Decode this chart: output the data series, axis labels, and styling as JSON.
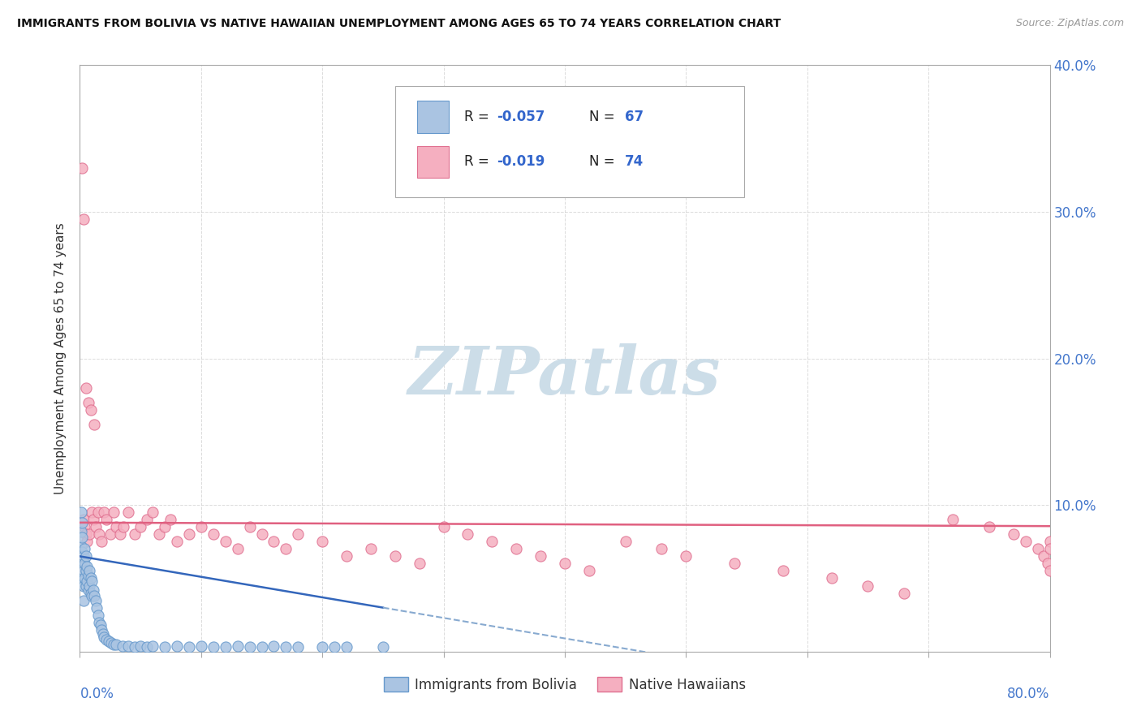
{
  "title": "IMMIGRANTS FROM BOLIVIA VS NATIVE HAWAIIAN UNEMPLOYMENT AMONG AGES 65 TO 74 YEARS CORRELATION CHART",
  "source": "Source: ZipAtlas.com",
  "ylabel": "Unemployment Among Ages 65 to 74 years",
  "xlim": [
    0.0,
    0.8
  ],
  "ylim": [
    0.0,
    0.4
  ],
  "legend_bottom_label1": "Immigrants from Bolivia",
  "legend_bottom_label2": "Native Hawaiians",
  "bolivia_color": "#aac4e2",
  "hawaii_color": "#f5afc0",
  "bolivia_edge": "#6699cc",
  "hawaii_edge": "#e07090",
  "trendline_bolivia_solid_color": "#3366bb",
  "trendline_bolivia_dash_color": "#88aad0",
  "trendline_hawaii_color": "#e06080",
  "legend_text_color": "#3366cc",
  "watermark_color": "#ccdde8",
  "bolivia_x": [
    0.001,
    0.001,
    0.001,
    0.001,
    0.001,
    0.002,
    0.002,
    0.002,
    0.002,
    0.002,
    0.003,
    0.003,
    0.003,
    0.003,
    0.004,
    0.004,
    0.004,
    0.005,
    0.005,
    0.005,
    0.006,
    0.006,
    0.007,
    0.007,
    0.008,
    0.008,
    0.009,
    0.009,
    0.01,
    0.01,
    0.011,
    0.012,
    0.013,
    0.014,
    0.015,
    0.016,
    0.017,
    0.018,
    0.019,
    0.02,
    0.022,
    0.024,
    0.026,
    0.028,
    0.03,
    0.035,
    0.04,
    0.045,
    0.05,
    0.055,
    0.06,
    0.07,
    0.08,
    0.09,
    0.1,
    0.11,
    0.12,
    0.13,
    0.14,
    0.15,
    0.16,
    0.17,
    0.18,
    0.2,
    0.21,
    0.22,
    0.25
  ],
  "bolivia_y": [
    0.095,
    0.082,
    0.072,
    0.062,
    0.052,
    0.088,
    0.078,
    0.068,
    0.058,
    0.048,
    0.065,
    0.055,
    0.045,
    0.035,
    0.07,
    0.06,
    0.05,
    0.065,
    0.055,
    0.045,
    0.058,
    0.048,
    0.052,
    0.042,
    0.055,
    0.045,
    0.05,
    0.04,
    0.048,
    0.038,
    0.042,
    0.038,
    0.035,
    0.03,
    0.025,
    0.02,
    0.018,
    0.015,
    0.012,
    0.01,
    0.008,
    0.007,
    0.006,
    0.005,
    0.005,
    0.004,
    0.004,
    0.003,
    0.004,
    0.003,
    0.004,
    0.003,
    0.004,
    0.003,
    0.004,
    0.003,
    0.003,
    0.004,
    0.003,
    0.003,
    0.004,
    0.003,
    0.003,
    0.003,
    0.003,
    0.003,
    0.003
  ],
  "hawaii_x": [
    0.002,
    0.003,
    0.003,
    0.004,
    0.005,
    0.005,
    0.006,
    0.007,
    0.008,
    0.009,
    0.01,
    0.011,
    0.012,
    0.013,
    0.015,
    0.016,
    0.018,
    0.02,
    0.022,
    0.025,
    0.028,
    0.03,
    0.033,
    0.036,
    0.04,
    0.045,
    0.05,
    0.055,
    0.06,
    0.065,
    0.07,
    0.075,
    0.08,
    0.09,
    0.1,
    0.11,
    0.12,
    0.13,
    0.14,
    0.15,
    0.16,
    0.17,
    0.18,
    0.2,
    0.22,
    0.24,
    0.26,
    0.28,
    0.3,
    0.32,
    0.34,
    0.36,
    0.38,
    0.4,
    0.42,
    0.45,
    0.48,
    0.5,
    0.54,
    0.58,
    0.62,
    0.65,
    0.68,
    0.72,
    0.75,
    0.77,
    0.78,
    0.79,
    0.795,
    0.798,
    0.8,
    0.8,
    0.8
  ],
  "hawaii_y": [
    0.33,
    0.09,
    0.295,
    0.085,
    0.08,
    0.18,
    0.075,
    0.17,
    0.08,
    0.165,
    0.095,
    0.09,
    0.155,
    0.085,
    0.095,
    0.08,
    0.075,
    0.095,
    0.09,
    0.08,
    0.095,
    0.085,
    0.08,
    0.085,
    0.095,
    0.08,
    0.085,
    0.09,
    0.095,
    0.08,
    0.085,
    0.09,
    0.075,
    0.08,
    0.085,
    0.08,
    0.075,
    0.07,
    0.085,
    0.08,
    0.075,
    0.07,
    0.08,
    0.075,
    0.065,
    0.07,
    0.065,
    0.06,
    0.085,
    0.08,
    0.075,
    0.07,
    0.065,
    0.06,
    0.055,
    0.075,
    0.07,
    0.065,
    0.06,
    0.055,
    0.05,
    0.045,
    0.04,
    0.09,
    0.085,
    0.08,
    0.075,
    0.07,
    0.065,
    0.06,
    0.055,
    0.075,
    0.07
  ]
}
